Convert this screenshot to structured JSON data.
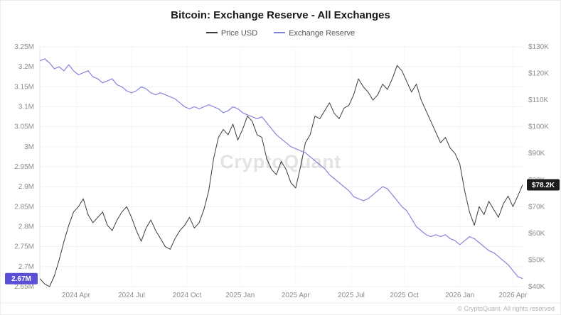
{
  "title": "Bitcoin: Exchange Reserve - All Exchanges",
  "legend": [
    {
      "label": "Price USD",
      "color": "#3a3a3a"
    },
    {
      "label": "Exchange Reserve",
      "color": "#8583dc"
    }
  ],
  "watermark": "CryptoQuant",
  "footer": "© CryptoQuant. All rights reserved",
  "badges": {
    "reserve_last": "2.67M",
    "price_last": "$78.2K",
    "reserve_badge_color": "#5a50d7",
    "price_badge_color": "#1b1b1b"
  },
  "chart_data": {
    "type": "line",
    "title": "Bitcoin: Exchange Reserve - All Exchanges",
    "grid": true,
    "legend_position": "top",
    "x_tick_labels": [
      "2024 Apr",
      "2024 Jul",
      "2024 Oct",
      "2025 Jan",
      "2025 Apr",
      "2025 Jul",
      "2025 Oct",
      "2026 Jan",
      "2026 Apr"
    ],
    "x_tick_pos": [
      0.075,
      0.19,
      0.305,
      0.415,
      0.53,
      0.645,
      0.755,
      0.87,
      0.98
    ],
    "left_axis": {
      "name": "Exchange Reserve (BTC)",
      "min": 2.65,
      "max": 3.25,
      "tick_values": [
        3.25,
        3.2,
        3.15,
        3.1,
        3.05,
        3.0,
        2.95,
        2.9,
        2.85,
        2.8,
        2.75,
        2.7,
        2.65
      ],
      "tick_labels": [
        "3.25M",
        "3.2M",
        "3.15M",
        "3.1M",
        "3.05M",
        "3M",
        "2.95M",
        "2.9M",
        "2.85M",
        "2.8M",
        "2.75M",
        "2.7M",
        "2.65M"
      ]
    },
    "right_axis": {
      "name": "Price USD",
      "min": 40,
      "max": 130,
      "tick_values": [
        130,
        120,
        110,
        100,
        90,
        80,
        70,
        60,
        50,
        40
      ],
      "tick_labels": [
        "$130K",
        "$120K",
        "$110K",
        "$100K",
        "$90K",
        "$80K",
        "$70K",
        "$60K",
        "$50K",
        "$40K"
      ]
    },
    "series": [
      {
        "name": "Price USD",
        "data_name": "price-line",
        "axis": "right",
        "unit": "K USD",
        "color": "#3a3a3a",
        "width": 1,
        "last_label": "$78.2K",
        "values": [
          43,
          41,
          40,
          44,
          50,
          57,
          63,
          68,
          70,
          73,
          67,
          64,
          66,
          68,
          63,
          61,
          65,
          68,
          70,
          66,
          61,
          57,
          62,
          65,
          61,
          58,
          55,
          54,
          58,
          61,
          63,
          66,
          62,
          64,
          69,
          76,
          88,
          96,
          99,
          97,
          101,
          95,
          99,
          104,
          102,
          97,
          96,
          88,
          84,
          82,
          87,
          84,
          79,
          77,
          85,
          94,
          97,
          104,
          103,
          106,
          109,
          105,
          103,
          107,
          108,
          112,
          118,
          115,
          113,
          110,
          112,
          116,
          114,
          118,
          123,
          121,
          117,
          113,
          116,
          110,
          106,
          102,
          98,
          94,
          96,
          92,
          90,
          86,
          76,
          68,
          63,
          70,
          67,
          72,
          69,
          66,
          71,
          74,
          70,
          74,
          78.2
        ]
      },
      {
        "name": "Exchange Reserve",
        "data_name": "reserve-line",
        "axis": "left",
        "unit": "M BTC",
        "color": "#8583dc",
        "width": 1.2,
        "last_label": "2.67M",
        "values": [
          3.215,
          3.22,
          3.21,
          3.195,
          3.2,
          3.19,
          3.205,
          3.19,
          3.18,
          3.185,
          3.19,
          3.175,
          3.17,
          3.16,
          3.165,
          3.17,
          3.155,
          3.15,
          3.14,
          3.135,
          3.14,
          3.15,
          3.145,
          3.135,
          3.13,
          3.135,
          3.13,
          3.125,
          3.12,
          3.11,
          3.1,
          3.095,
          3.1,
          3.095,
          3.1,
          3.105,
          3.1,
          3.095,
          3.085,
          3.09,
          3.1,
          3.095,
          3.085,
          3.08,
          3.075,
          3.07,
          3.075,
          3.06,
          3.045,
          3.03,
          3.02,
          3.01,
          3.0,
          2.995,
          2.99,
          2.985,
          2.975,
          2.965,
          2.955,
          2.945,
          2.93,
          2.92,
          2.91,
          2.9,
          2.89,
          2.875,
          2.87,
          2.865,
          2.87,
          2.88,
          2.89,
          2.9,
          2.895,
          2.88,
          2.865,
          2.85,
          2.84,
          2.82,
          2.8,
          2.79,
          2.78,
          2.775,
          2.78,
          2.775,
          2.78,
          2.77,
          2.765,
          2.755,
          2.765,
          2.775,
          2.77,
          2.76,
          2.75,
          2.74,
          2.735,
          2.725,
          2.715,
          2.705,
          2.69,
          2.675,
          2.67
        ]
      }
    ]
  }
}
